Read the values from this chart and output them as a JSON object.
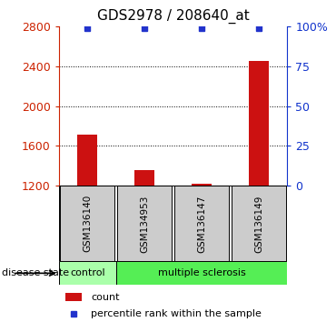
{
  "title": "GDS2978 / 208640_at",
  "samples": [
    "GSM136140",
    "GSM134953",
    "GSM136147",
    "GSM136149"
  ],
  "counts": [
    1710,
    1360,
    1225,
    2450
  ],
  "percentiles": [
    99,
    99,
    99,
    99
  ],
  "ylim_left": [
    1200,
    2800
  ],
  "ylim_right": [
    0,
    100
  ],
  "yticks_left": [
    1200,
    1600,
    2000,
    2400,
    2800
  ],
  "yticks_right": [
    0,
    25,
    50,
    75,
    100
  ],
  "ytick_labels_right": [
    "0",
    "25",
    "50",
    "75",
    "100%"
  ],
  "bar_color": "#cc1111",
  "dot_color": "#2233cc",
  "group_labels": [
    "control",
    "multiple sclerosis"
  ],
  "group_ranges": [
    [
      0,
      1
    ],
    [
      1,
      4
    ]
  ],
  "group_colors": [
    "#aaffaa",
    "#55ee55"
  ],
  "label_color_left": "#cc2200",
  "label_color_right": "#1133cc",
  "bg_color": "#ffffff",
  "sample_box_color": "#cccccc",
  "legend_count_label": "count",
  "legend_pct_label": "percentile rank within the sample"
}
